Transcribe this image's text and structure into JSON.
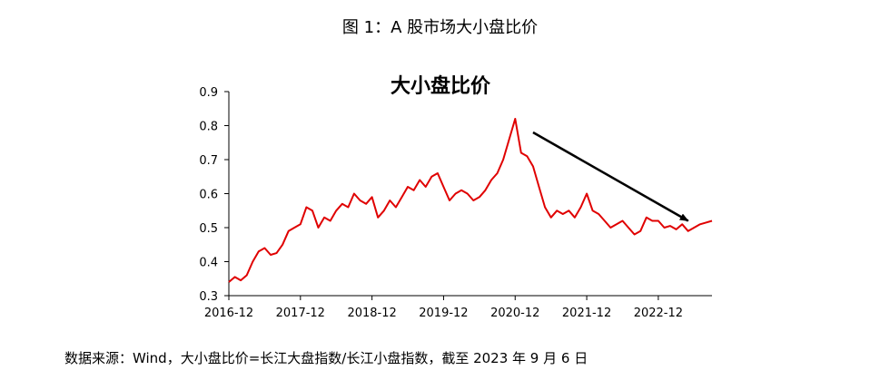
{
  "figure_title": "图 1：A 股市场大小盘比价",
  "source_note": "数据来源：Wind，大小盘比价=长江大盘指数/长江小盘指数，截至 2023 年 9 月 6 日",
  "chart_data": {
    "type": "line",
    "title": "大小盘比价",
    "xlabel": "",
    "ylabel": "",
    "x_ticks": [
      "2016-12",
      "2017-12",
      "2018-12",
      "2019-12",
      "2020-12",
      "2021-12",
      "2022-12"
    ],
    "y_ticks": [
      "0.9",
      "0.8",
      "0.7",
      "0.6",
      "0.5",
      "0.4",
      "0.3"
    ],
    "xlim": [
      "2016-12",
      "2023-09"
    ],
    "ylim": [
      0.3,
      0.9
    ],
    "grid": false,
    "legend": "none",
    "series_color": "#e00000",
    "annotation": "downward arrow from 2021-03 (~0.78) to 2023-05 (~0.52)",
    "series": [
      {
        "x": [
          "2016-12",
          "2017-01",
          "2017-02",
          "2017-03",
          "2017-04",
          "2017-05",
          "2017-06",
          "2017-07",
          "2017-08",
          "2017-09",
          "2017-10",
          "2017-11",
          "2017-12",
          "2018-01",
          "2018-02",
          "2018-03",
          "2018-04",
          "2018-05",
          "2018-06",
          "2018-07",
          "2018-08",
          "2018-09",
          "2018-10",
          "2018-11",
          "2018-12",
          "2019-01",
          "2019-02",
          "2019-03",
          "2019-04",
          "2019-05",
          "2019-06",
          "2019-07",
          "2019-08",
          "2019-09",
          "2019-10",
          "2019-11",
          "2019-12",
          "2020-01",
          "2020-02",
          "2020-03",
          "2020-04",
          "2020-05",
          "2020-06",
          "2020-07",
          "2020-08",
          "2020-09",
          "2020-10",
          "2020-11",
          "2020-12",
          "2021-01",
          "2021-02",
          "2021-03",
          "2021-04",
          "2021-05",
          "2021-06",
          "2021-07",
          "2021-08",
          "2021-09",
          "2021-10",
          "2021-11",
          "2021-12",
          "2022-01",
          "2022-02",
          "2022-03",
          "2022-04",
          "2022-05",
          "2022-06",
          "2022-07",
          "2022-08",
          "2022-09",
          "2022-10",
          "2022-11",
          "2022-12",
          "2023-01",
          "2023-02",
          "2023-03",
          "2023-04",
          "2023-05",
          "2023-06",
          "2023-07",
          "2023-08",
          "2023-09"
        ],
        "values": [
          0.34,
          0.355,
          0.345,
          0.36,
          0.4,
          0.43,
          0.44,
          0.42,
          0.425,
          0.45,
          0.49,
          0.5,
          0.51,
          0.56,
          0.55,
          0.5,
          0.53,
          0.52,
          0.55,
          0.57,
          0.56,
          0.6,
          0.58,
          0.57,
          0.59,
          0.53,
          0.55,
          0.58,
          0.56,
          0.59,
          0.62,
          0.61,
          0.64,
          0.62,
          0.65,
          0.66,
          0.62,
          0.58,
          0.6,
          0.61,
          0.6,
          0.58,
          0.59,
          0.61,
          0.64,
          0.66,
          0.7,
          0.76,
          0.82,
          0.72,
          0.71,
          0.68,
          0.62,
          0.56,
          0.53,
          0.55,
          0.54,
          0.55,
          0.53,
          0.56,
          0.6,
          0.55,
          0.54,
          0.52,
          0.5,
          0.51,
          0.52,
          0.5,
          0.48,
          0.49,
          0.53,
          0.52,
          0.52,
          0.5,
          0.505,
          0.495,
          0.51,
          0.49,
          0.5,
          0.51,
          0.515,
          0.52
        ]
      }
    ]
  }
}
